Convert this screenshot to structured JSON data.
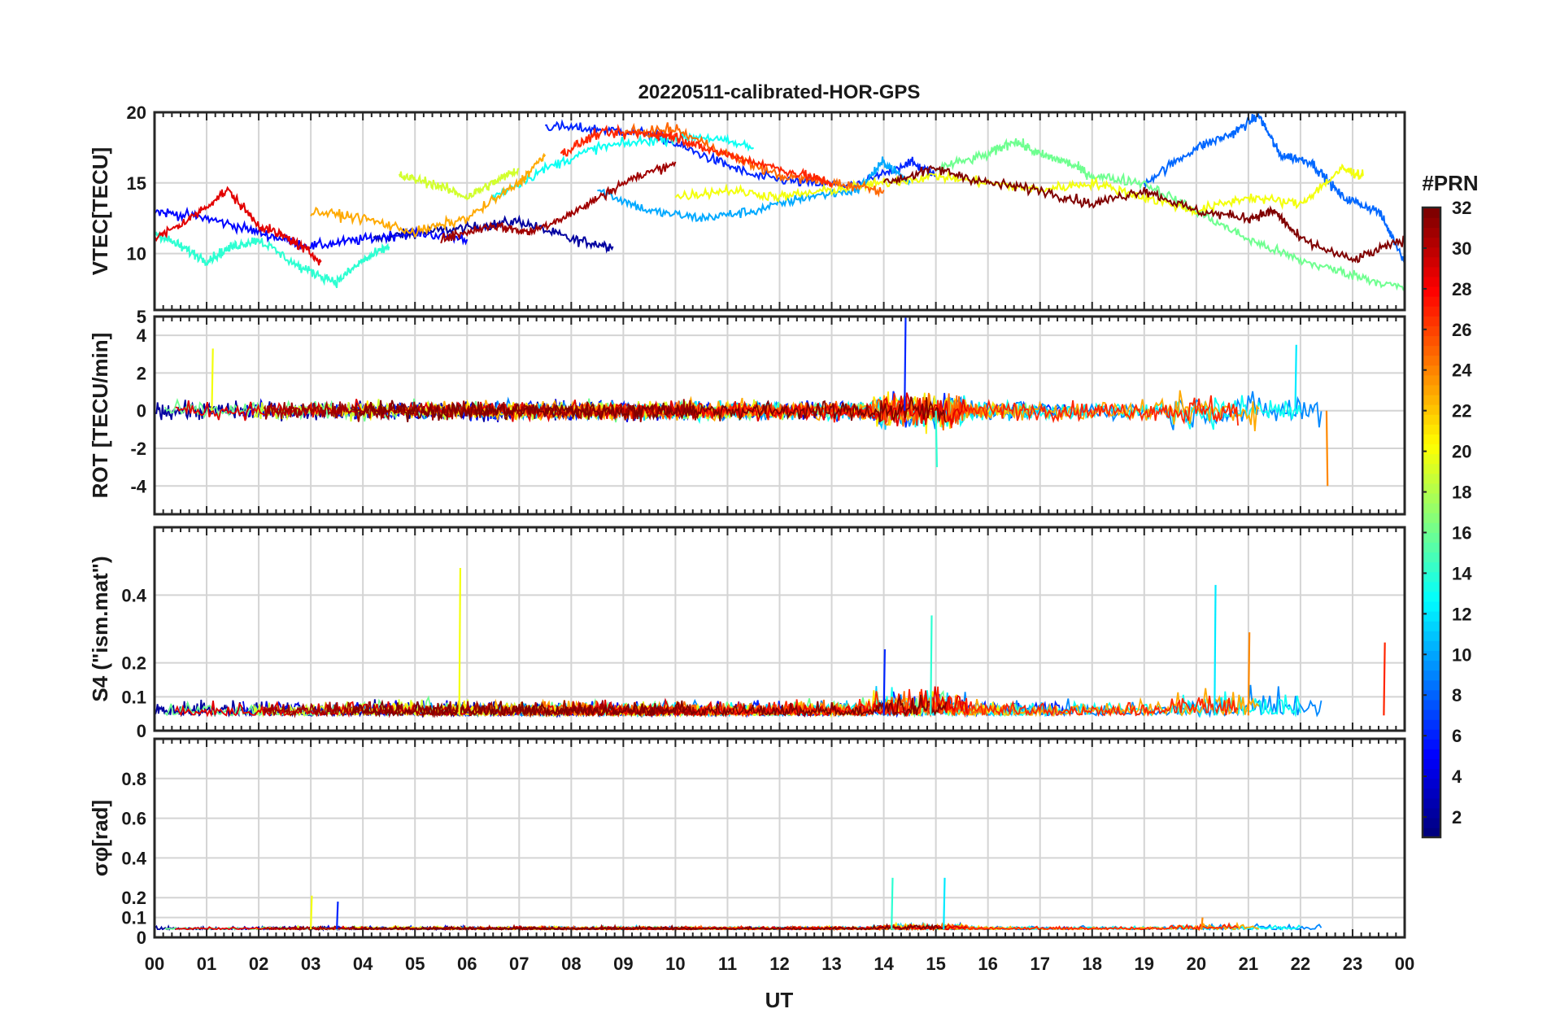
{
  "chart_data": {
    "title": "20220511-calibrated-HOR-GPS",
    "type": "line",
    "xlabel": "UT",
    "x_ticks": [
      "00",
      "01",
      "02",
      "03",
      "04",
      "05",
      "06",
      "07",
      "08",
      "09",
      "10",
      "11",
      "12",
      "13",
      "14",
      "15",
      "16",
      "17",
      "18",
      "19",
      "20",
      "21",
      "22",
      "23",
      "00"
    ],
    "xlim": [
      0,
      24
    ],
    "colorbar": {
      "label": "#PRN",
      "range": [
        1,
        32
      ],
      "ticks": [
        "2",
        "4",
        "6",
        "8",
        "10",
        "12",
        "14",
        "16",
        "18",
        "20",
        "22",
        "24",
        "26",
        "28",
        "30",
        "32"
      ],
      "colormap": "jet"
    },
    "panels": [
      {
        "name": "vtec",
        "ylabel": "VTEC[TECU]",
        "ylim": [
          6,
          20
        ],
        "yticks": [
          "10",
          "15",
          "20"
        ],
        "description_series": [
          {
            "prn": 2,
            "x": [
              4.2,
              5.0,
              6.0,
              7.0,
              8.0,
              8.8
            ],
            "y": [
              11.0,
              11.5,
              11.8,
              12.3,
              11.0,
              10.5
            ]
          },
          {
            "prn": 5,
            "x": [
              0.0,
              1.0,
              2.0,
              3.0,
              4.0,
              5.0,
              6.0
            ],
            "y": [
              13.0,
              12.5,
              11.5,
              10.5,
              11.0,
              11.5,
              11.0
            ]
          },
          {
            "prn": 6,
            "x": [
              7.5,
              8.5,
              9.5,
              10.5,
              11.5,
              12.5,
              13.5,
              14.5,
              15.0
            ],
            "y": [
              19.0,
              18.8,
              18.5,
              17.0,
              15.5,
              15.0,
              14.8,
              16.5,
              15.5
            ]
          },
          {
            "prn": 8,
            "x": [
              19.0,
              20.0,
              20.7,
              21.2,
              21.6,
              22.2,
              22.8,
              23.5,
              24.0
            ],
            "y": [
              15.0,
              17.5,
              18.5,
              19.8,
              17.0,
              16.5,
              14.0,
              13.0,
              9.5
            ]
          },
          {
            "prn": 10,
            "x": [
              8.5,
              9.5,
              10.5,
              11.5,
              12.5,
              13.5,
              14.0,
              14.5
            ],
            "y": [
              14.5,
              13.0,
              12.5,
              13.0,
              14.0,
              14.5,
              16.5,
              15.0
            ]
          },
          {
            "prn": 13,
            "x": [
              6.5,
              7.5,
              8.5,
              9.5,
              10.5,
              11.5
            ],
            "y": [
              14.0,
              16.0,
              17.5,
              18.0,
              18.3,
              17.5
            ]
          },
          {
            "prn": 14,
            "x": [
              0.0,
              0.5,
              1.0,
              1.5,
              2.0,
              2.8,
              3.5,
              4.0,
              4.5
            ],
            "y": [
              11.5,
              10.5,
              9.5,
              10.5,
              11.0,
              9.0,
              8.0,
              9.5,
              10.5
            ]
          },
          {
            "prn": 16,
            "x": [
              15.0,
              16.0,
              16.5,
              17.0,
              17.5,
              18.0,
              19.0,
              20.0,
              21.0,
              22.0,
              23.0,
              24.0
            ],
            "y": [
              16.0,
              17.0,
              18.0,
              17.0,
              16.5,
              15.5,
              15.0,
              13.0,
              11.0,
              9.5,
              8.5,
              7.5
            ]
          },
          {
            "prn": 19,
            "x": [
              4.7,
              5.3,
              6.0,
              6.5,
              7.0
            ],
            "y": [
              15.5,
              15.0,
              14.0,
              15.0,
              16.0
            ]
          },
          {
            "prn": 20,
            "x": [
              10.0,
              11.0,
              12.0,
              13.0,
              14.0,
              15.0,
              16.0,
              17.0,
              18.0,
              19.0,
              20.0,
              21.0,
              22.0,
              22.8,
              23.2
            ],
            "y": [
              14.0,
              14.5,
              14.0,
              14.5,
              15.0,
              15.5,
              15.0,
              14.5,
              15.0,
              14.0,
              13.0,
              14.0,
              13.5,
              16.0,
              15.5
            ]
          },
          {
            "prn": 23,
            "x": [
              3.0,
              4.0,
              5.0,
              6.0,
              7.0,
              7.5
            ],
            "y": [
              13.0,
              12.5,
              11.5,
              12.5,
              15.0,
              17.0
            ]
          },
          {
            "prn": 25,
            "x": [
              9.0,
              10.0,
              11.0,
              12.0,
              13.0,
              14.0
            ],
            "y": [
              18.5,
              18.8,
              17.0,
              15.5,
              15.0,
              14.5
            ]
          },
          {
            "prn": 27,
            "x": [
              7.8,
              8.5,
              9.5,
              10.0,
              10.5,
              11.5,
              12.5,
              13.0
            ],
            "y": [
              17.0,
              18.5,
              18.5,
              18.3,
              17.5,
              16.5,
              15.5,
              15.0
            ]
          },
          {
            "prn": 29,
            "x": [
              0.0,
              0.7,
              1.4,
              2.0,
              2.6,
              3.2
            ],
            "y": [
              11.0,
              12.5,
              14.5,
              12.0,
              11.0,
              9.5
            ]
          },
          {
            "prn": 31,
            "x": [
              5.5,
              6.5,
              7.2,
              8.1,
              9.0,
              10.0
            ],
            "y": [
              11.0,
              12.0,
              11.5,
              13.0,
              15.0,
              16.5
            ]
          },
          {
            "prn": 32,
            "x": [
              14.0,
              15.0,
              16.0,
              17.0,
              18.0,
              19.0,
              20.0,
              21.0,
              21.5,
              22.0,
              23.0,
              24.0
            ],
            "y": [
              15.0,
              16.0,
              15.0,
              14.5,
              13.5,
              14.5,
              13.0,
              12.5,
              13.0,
              11.0,
              9.5,
              11.0
            ]
          }
        ]
      },
      {
        "name": "rot",
        "ylabel": "ROT [TECU/min]",
        "ylim": [
          -5.5,
          5
        ],
        "yticks": [
          "-4",
          "-2",
          "0",
          "2",
          "4",
          "5"
        ],
        "notable_spikes": [
          {
            "time": 1.1,
            "value": 3.3
          },
          {
            "time": 14.4,
            "value": 5.0
          },
          {
            "time": 15.0,
            "value": -3.0
          },
          {
            "time": 21.9,
            "value": 3.5
          },
          {
            "time": 22.5,
            "value": -4.0
          }
        ]
      },
      {
        "name": "s4",
        "ylabel": "S4 (\"ism.mat\")",
        "ylim": [
          0,
          0.6
        ],
        "yticks": [
          "0",
          "0.1",
          "0.2",
          "0.4"
        ],
        "notable_spikes": [
          {
            "time": 5.85,
            "value": 0.48
          },
          {
            "time": 14.0,
            "value": 0.24
          },
          {
            "time": 14.9,
            "value": 0.34
          },
          {
            "time": 20.35,
            "value": 0.43
          },
          {
            "time": 21.0,
            "value": 0.29
          },
          {
            "time": 23.6,
            "value": 0.26
          }
        ]
      },
      {
        "name": "sigma_phi",
        "ylabel": "σφ[rad]",
        "ylim": [
          0,
          1
        ],
        "yticks": [
          "0",
          "0.1",
          "0.2",
          "0.4",
          "0.6",
          "0.8"
        ],
        "notable_spikes": [
          {
            "time": 3.0,
            "value": 0.21
          },
          {
            "time": 3.5,
            "value": 0.18
          },
          {
            "time": 14.15,
            "value": 0.3
          },
          {
            "time": 15.15,
            "value": 0.3
          },
          {
            "time": 20.1,
            "value": 0.1
          }
        ]
      }
    ]
  }
}
